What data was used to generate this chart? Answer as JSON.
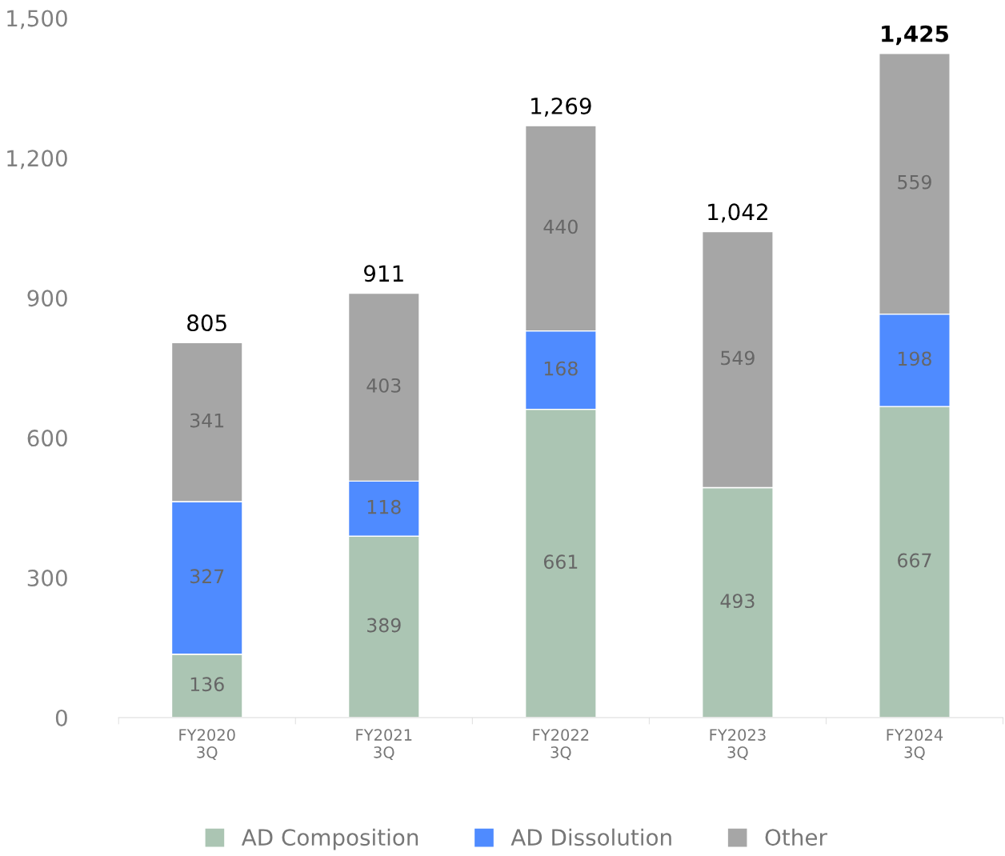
{
  "chart_data": {
    "type": "bar",
    "stacked": true,
    "categories": [
      "FY2020\n3Q",
      "FY2021\n3Q",
      "FY2022\n3Q",
      "FY2023\n3Q",
      "FY2024\n3Q"
    ],
    "series": [
      {
        "name": "AD Composition",
        "color": "#abc5b3",
        "values": [
          136,
          389,
          661,
          493,
          667
        ]
      },
      {
        "name": "AD Dissolution",
        "color": "#4f8bff",
        "values": [
          327,
          118,
          168,
          null,
          198
        ]
      },
      {
        "name": "Other",
        "color": "#a6a6a6",
        "values": [
          341,
          403,
          440,
          549,
          559
        ]
      }
    ],
    "totals": [
      "805",
      "911",
      "1,269",
      "1,042",
      "1,425"
    ],
    "data_labels": true,
    "ylim": [
      0,
      1500
    ],
    "yticks": [
      0,
      300,
      600,
      900,
      {
        "value": 1200,
        "label": "1,200"
      },
      {
        "value": 1500,
        "label": "1,500"
      }
    ],
    "grid": false,
    "legend": "bottom"
  }
}
